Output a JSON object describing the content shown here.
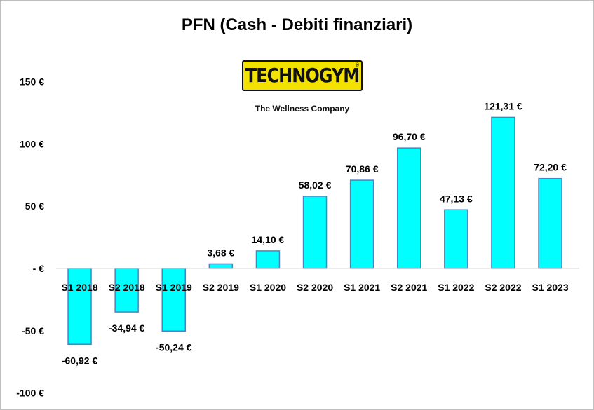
{
  "chart_data": {
    "type": "bar",
    "title": "PFN (Cash - Debiti finanziari)",
    "categories": [
      "S1 2018",
      "S2 2018",
      "S1 2019",
      "S2 2019",
      "S1 2020",
      "S2 2020",
      "S1 2021",
      "S2 2021",
      "S1 2022",
      "S2 2022",
      "S1 2023"
    ],
    "values": [
      -60.92,
      -34.94,
      -50.24,
      3.68,
      14.1,
      58.02,
      70.86,
      96.7,
      47.13,
      121.31,
      72.2
    ],
    "data_labels": [
      "-60,92 €",
      "-34,94 €",
      "-50,24 €",
      "3,68 €",
      "14,10 €",
      "58,02 €",
      "70,86 €",
      "96,70 €",
      "47,13 €",
      "121,31 €",
      "72,20 €"
    ],
    "y_ticks": [
      150,
      100,
      50,
      0,
      -50,
      -100
    ],
    "y_tick_labels": [
      "150 €",
      "100 €",
      "50 €",
      "- €",
      "-50 €",
      "-100 €"
    ],
    "ylim": [
      -100,
      150
    ],
    "grid": false,
    "legend": "none",
    "bar_color": "#00ffff",
    "bar_edge_color": "#4f81bd"
  },
  "logo": {
    "brand": "TECHNOGYM",
    "reg_mark": "®",
    "tagline": "The Wellness Company"
  }
}
